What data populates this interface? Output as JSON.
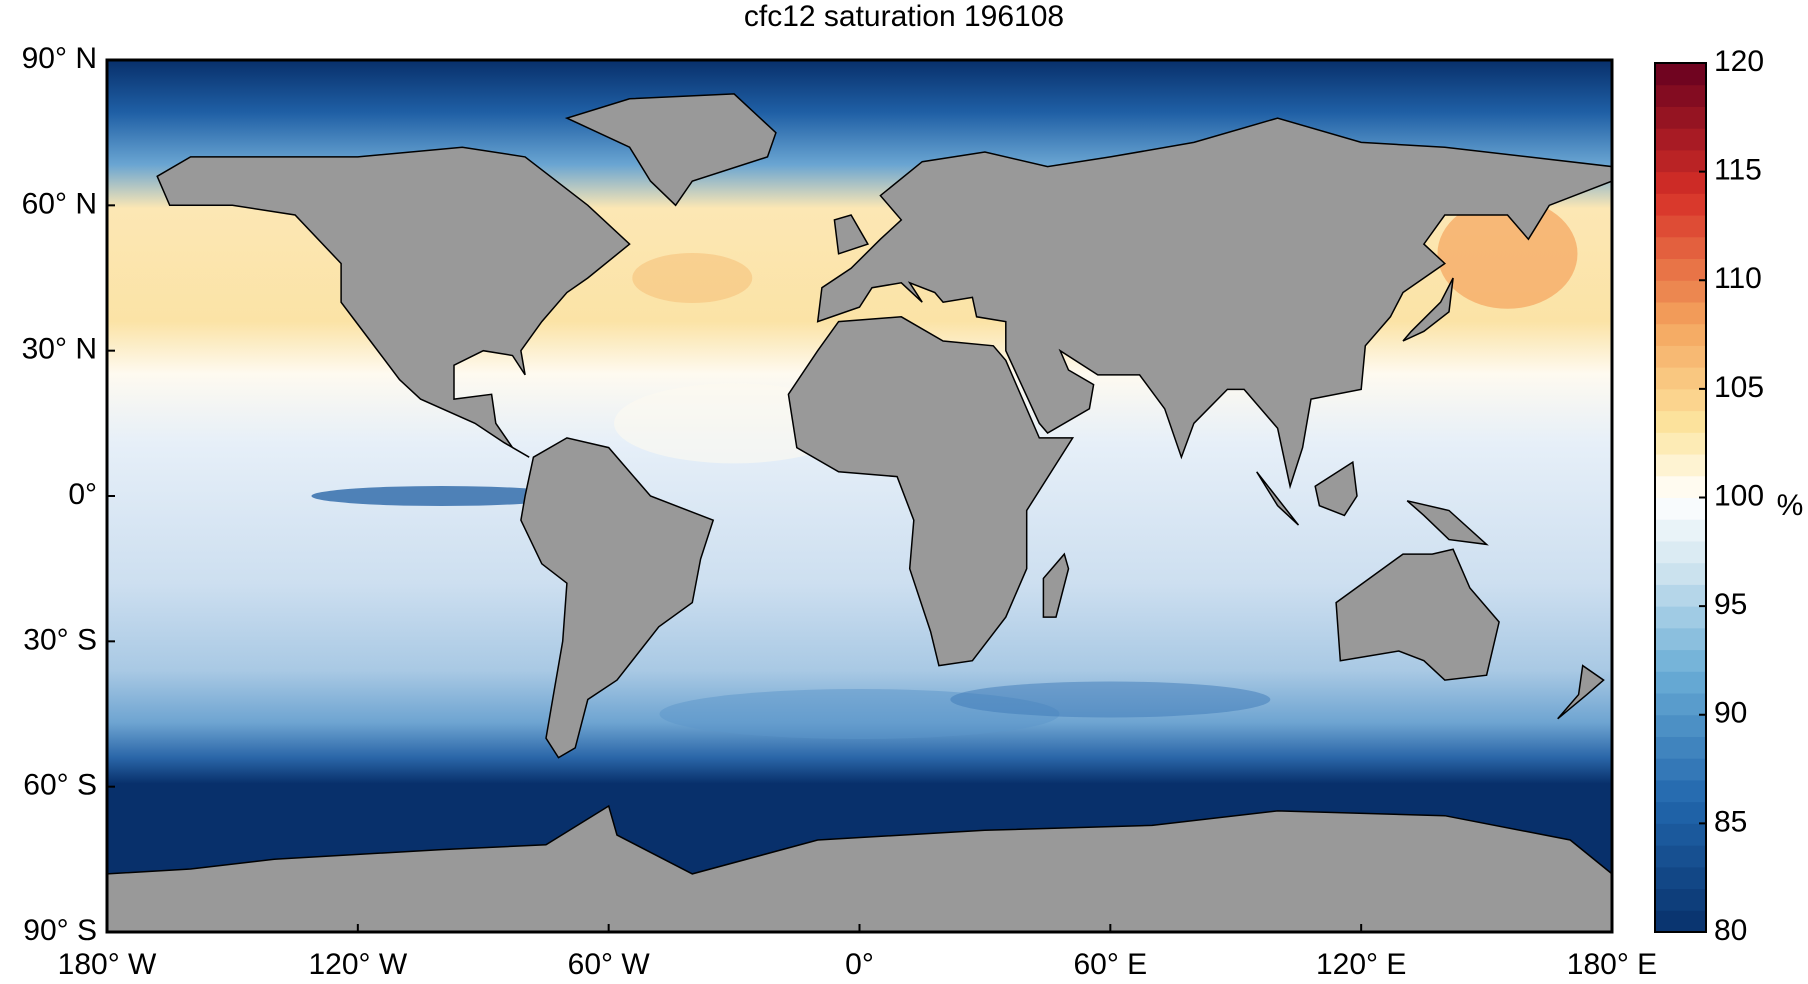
{
  "title": "cfc12 saturation 196108",
  "map": {
    "xlim": [
      -180,
      180
    ],
    "ylim": [
      -90,
      90
    ],
    "xticks": [
      {
        "value": -180,
        "label": "180° W"
      },
      {
        "value": -120,
        "label": "120° W"
      },
      {
        "value": -60,
        "label": "60° W"
      },
      {
        "value": 0,
        "label": "0°"
      },
      {
        "value": 60,
        "label": "60° E"
      },
      {
        "value": 120,
        "label": "120° E"
      },
      {
        "value": 180,
        "label": "180° E"
      }
    ],
    "yticks": [
      {
        "value": 90,
        "label": "90° N"
      },
      {
        "value": 60,
        "label": "60° N"
      },
      {
        "value": 30,
        "label": "30° N"
      },
      {
        "value": 0,
        "label": "0°"
      },
      {
        "value": -30,
        "label": "30° S"
      },
      {
        "value": -60,
        "label": "60° S"
      },
      {
        "value": -90,
        "label": "90° S"
      }
    ]
  },
  "colorbar": {
    "range": [
      80,
      120
    ],
    "ticks": [
      80,
      85,
      90,
      95,
      100,
      105,
      110,
      115,
      120
    ],
    "unit": "%"
  }
}
